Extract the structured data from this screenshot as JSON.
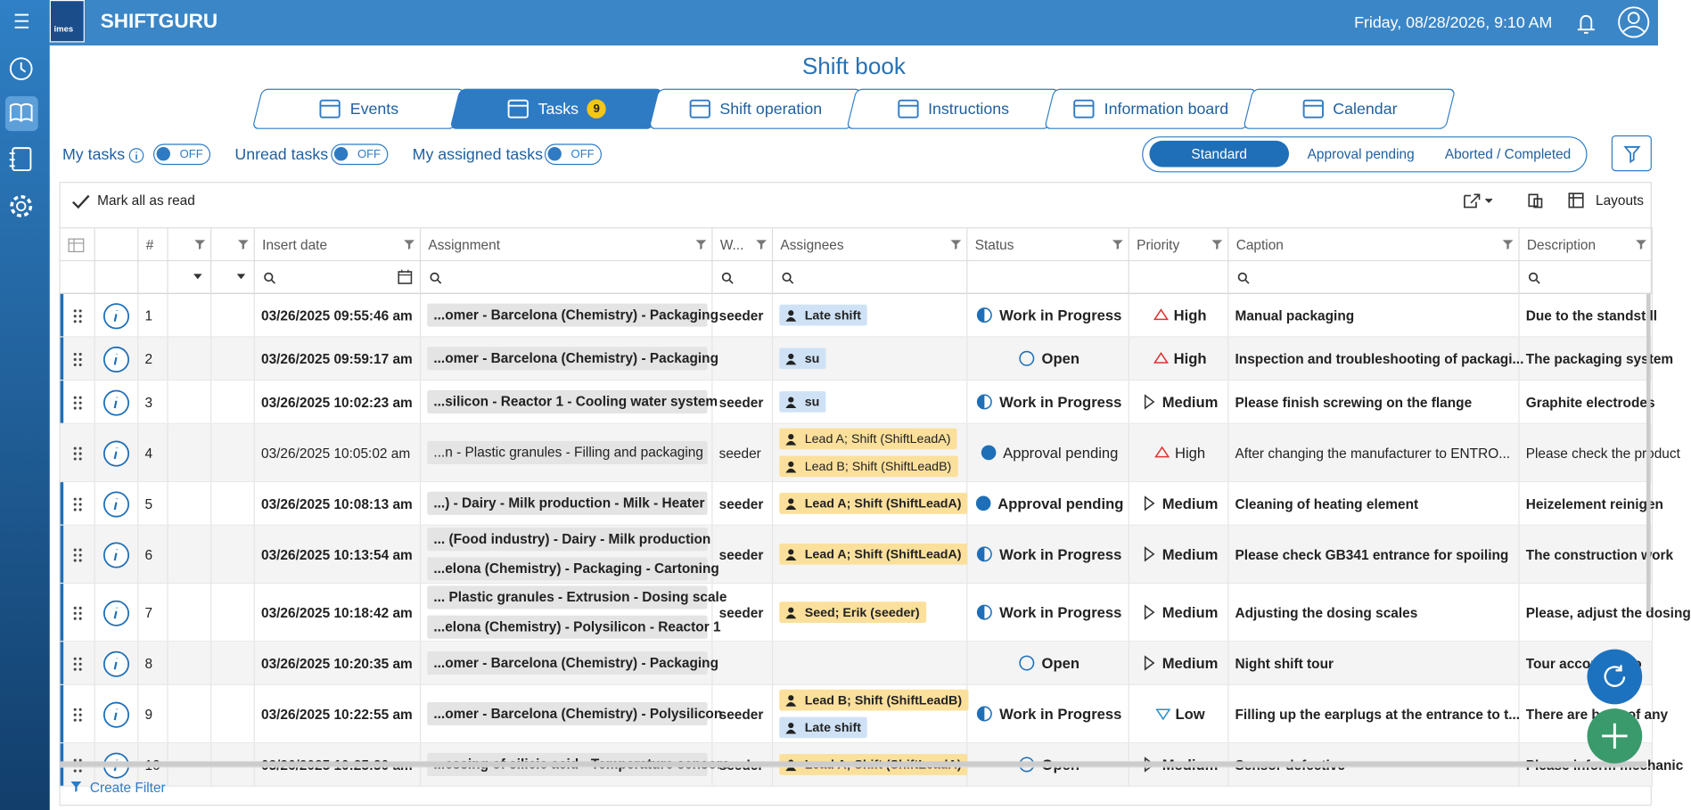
{
  "header": {
    "app_name": "SHIFTGURU",
    "logo_text": "imes",
    "datetime": "Friday, 08/28/2026, 9:10 AM"
  },
  "page_title": "Shift book",
  "tabs": [
    {
      "label": "Events"
    },
    {
      "label": "Tasks",
      "badge": "9",
      "active": true
    },
    {
      "label": "Shift operation"
    },
    {
      "label": "Instructions"
    },
    {
      "label": "Information board"
    },
    {
      "label": "Calendar"
    }
  ],
  "toggles": [
    {
      "label": "My tasks",
      "state": "OFF",
      "info": true
    },
    {
      "label": "Unread tasks",
      "state": "OFF"
    },
    {
      "label": "My assigned tasks",
      "state": "OFF"
    }
  ],
  "view_modes": [
    {
      "label": "Standard",
      "active": true
    },
    {
      "label": "Approval pending"
    },
    {
      "label": "Aborted / Completed"
    }
  ],
  "toolbar": {
    "mark_all": "Mark all as read",
    "layouts": "Layouts"
  },
  "columns": {
    "number": "#",
    "insert_date": "Insert date",
    "assignment": "Assignment",
    "w": "W...",
    "assignees": "Assignees",
    "status": "Status",
    "priority": "Priority",
    "caption": "Caption",
    "description": "Description"
  },
  "rows": [
    {
      "number": "1",
      "date": "03/26/2025 09:55:46 am",
      "assignments": [
        "...omer - Barcelona (Chemistry) - Packaging"
      ],
      "w": "seeder",
      "assignees": [
        {
          "label": "Late shift",
          "color": "#cfe2f5"
        }
      ],
      "status": {
        "label": "Work in Progress",
        "icon": "half"
      },
      "priority": {
        "label": "High",
        "icon": "up"
      },
      "caption": "Manual packaging",
      "description": "Due to the standstill",
      "read": false
    },
    {
      "number": "2",
      "date": "03/26/2025 09:59:17 am",
      "assignments": [
        "...omer - Barcelona (Chemistry) - Packaging"
      ],
      "assignees": [
        {
          "label": "su",
          "color": "#cfe2f5"
        }
      ],
      "status": {
        "label": "Open",
        "icon": "empty"
      },
      "priority": {
        "label": "High",
        "icon": "up"
      },
      "caption": "Inspection and troubleshooting of packagi...",
      "description": "The packaging system",
      "read": false
    },
    {
      "number": "3",
      "date": "03/26/2025 10:02:23 am",
      "assignments": [
        "...silicon - Reactor 1 - Cooling water system"
      ],
      "w": "seeder",
      "assignees": [
        {
          "label": "su",
          "color": "#cfe2f5"
        }
      ],
      "status": {
        "label": "Work in Progress",
        "icon": "half"
      },
      "priority": {
        "label": "Medium",
        "icon": "right"
      },
      "caption": "Please finish screwing on the flange",
      "description": "Graphite electrodes",
      "read": false
    },
    {
      "number": "4",
      "date": "03/26/2025 10:05:02 am",
      "assignments": [
        "...n - Plastic granules - Filling and packaging"
      ],
      "w": "seeder",
      "assignees": [
        {
          "label": "Lead A; Shift (ShiftLeadA)",
          "color": "#fbe09c"
        },
        {
          "label": "Lead B; Shift (ShiftLeadB)",
          "color": "#fbe09c"
        }
      ],
      "status": {
        "label": "Approval pending",
        "icon": "full"
      },
      "priority": {
        "label": "High",
        "icon": "up"
      },
      "caption": "After changing the manufacturer to ENTRO...",
      "description": "Please check the product",
      "read": true
    },
    {
      "number": "5",
      "date": "03/26/2025 10:08:13 am",
      "assignments": [
        "...) - Dairy - Milk production - Milk - Heater"
      ],
      "w": "seeder",
      "assignees": [
        {
          "label": "Lead A; Shift (ShiftLeadA)",
          "color": "#fbe09c"
        }
      ],
      "status": {
        "label": "Approval pending",
        "icon": "full"
      },
      "priority": {
        "label": "Medium",
        "icon": "right"
      },
      "caption": "Cleaning of heating element",
      "description": "Heizelement reinigen",
      "read": false
    },
    {
      "number": "6",
      "date": "03/26/2025 10:13:54 am",
      "assignments": [
        "... (Food industry) - Dairy - Milk production",
        "...elona (Chemistry) - Packaging - Cartoning"
      ],
      "w": "seeder",
      "assignees": [
        {
          "label": "Lead A; Shift (ShiftLeadA)",
          "color": "#fbe09c"
        }
      ],
      "status": {
        "label": "Work in Progress",
        "icon": "half"
      },
      "priority": {
        "label": "Medium",
        "icon": "right"
      },
      "caption": "Please check GB341 entrance for spoiling",
      "description": "The construction work",
      "read": false
    },
    {
      "number": "7",
      "date": "03/26/2025 10:18:42 am",
      "assignments": [
        "... Plastic granules - Extrusion - Dosing scale",
        "...elona (Chemistry) - Polysilicon - Reactor 1"
      ],
      "w": "seeder",
      "assignees": [
        {
          "label": "Seed; Erik (seeder)",
          "color": "#fbe09c"
        }
      ],
      "status": {
        "label": "Work in Progress",
        "icon": "half"
      },
      "priority": {
        "label": "Medium",
        "icon": "right"
      },
      "caption": "Adjusting the dosing scales",
      "description": "Please, adjust the dosing",
      "read": false
    },
    {
      "number": "8",
      "date": "03/26/2025 10:20:35 am",
      "assignments": [
        "...omer - Barcelona (Chemistry) - Packaging"
      ],
      "assignees": [],
      "status": {
        "label": "Open",
        "icon": "empty"
      },
      "priority": {
        "label": "Medium",
        "icon": "right"
      },
      "caption": "Night shift tour",
      "description": "Tour according to",
      "read": false
    },
    {
      "number": "9",
      "date": "03/26/2025 10:22:55 am",
      "assignments": [
        "...omer - Barcelona (Chemistry) - Polysilicon"
      ],
      "w": "seeder",
      "assignees": [
        {
          "label": "Lead B; Shift (ShiftLeadB)",
          "color": "#fbe09c"
        },
        {
          "label": "Late shift",
          "color": "#cfe2f5"
        }
      ],
      "status": {
        "label": "Work in Progress",
        "icon": "half"
      },
      "priority": {
        "label": "Low",
        "icon": "down"
      },
      "caption": "Filling up the earplugs at the entrance to t...",
      "description": "There are bags of any",
      "read": false
    },
    {
      "number": "10",
      "date": "03/26/2025 10:25:30 am",
      "assignments": [
        "...essing of silicic acid - Temperature sensors"
      ],
      "w": "seeder",
      "assignees": [
        {
          "label": "Lead A; Shift (ShiftLeadA)",
          "color": "#fbe09c"
        }
      ],
      "status": {
        "label": "Open",
        "icon": "empty"
      },
      "priority": {
        "label": "Medium",
        "icon": "right"
      },
      "caption": "Sensor defective",
      "description": "Please inform mechanic",
      "read": false
    }
  ],
  "footer": {
    "create_filter": "Create Filter"
  }
}
